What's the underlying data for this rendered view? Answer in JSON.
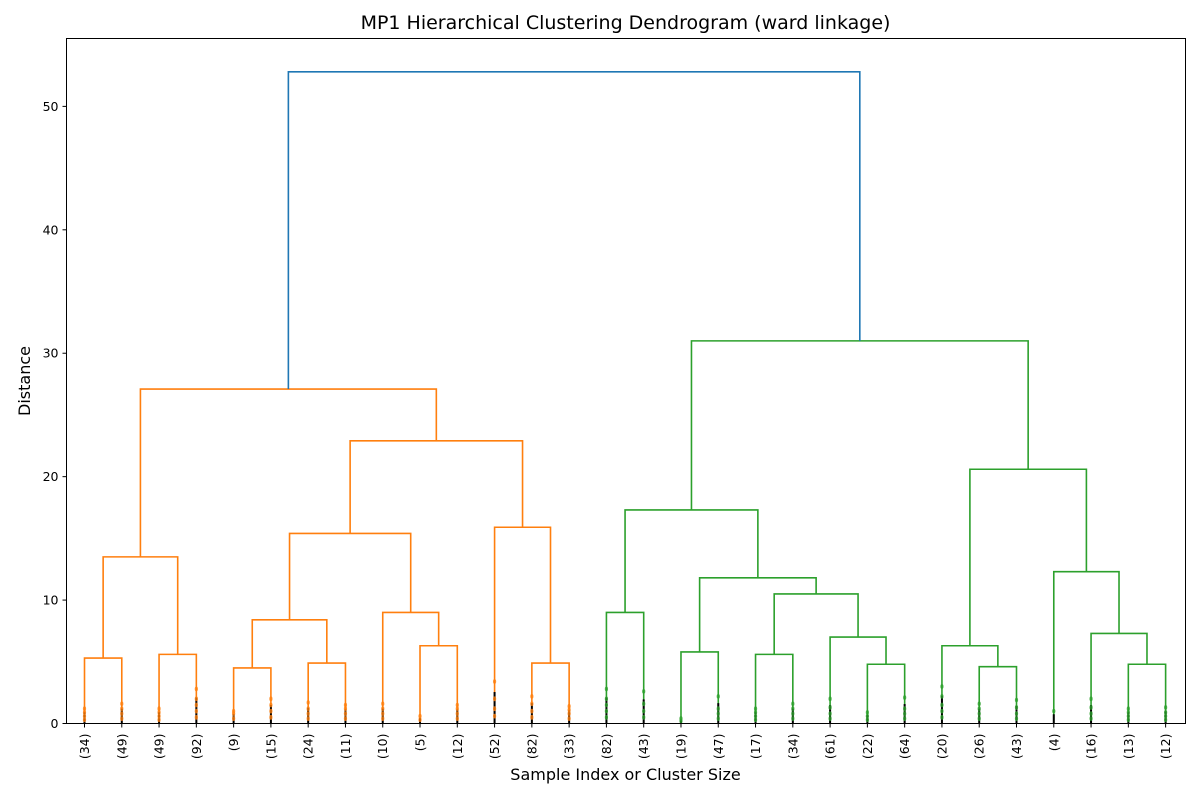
{
  "chart_data": {
    "type": "dendrogram",
    "title": "MP1 Hierarchical Clustering Dendrogram (ward linkage)",
    "xlabel": "Sample Index or Cluster Size",
    "ylabel": "Distance",
    "ylim": [
      0,
      55.5
    ],
    "yticks": [
      0,
      10,
      20,
      30,
      40,
      50
    ],
    "grid": false,
    "colors": {
      "root": "#1f77b4",
      "cluster_1": "#ff7f0e",
      "cluster_2": "#2ca02c",
      "leaf_mark": "#000000"
    },
    "leaves": [
      {
        "label": "(34)",
        "cluster": "cluster_1"
      },
      {
        "label": "(49)",
        "cluster": "cluster_1"
      },
      {
        "label": "(49)",
        "cluster": "cluster_1"
      },
      {
        "label": "(92)",
        "cluster": "cluster_1"
      },
      {
        "label": "(9)",
        "cluster": "cluster_1"
      },
      {
        "label": "(15)",
        "cluster": "cluster_1"
      },
      {
        "label": "(24)",
        "cluster": "cluster_1"
      },
      {
        "label": "(11)",
        "cluster": "cluster_1"
      },
      {
        "label": "(10)",
        "cluster": "cluster_1"
      },
      {
        "label": "(5)",
        "cluster": "cluster_1"
      },
      {
        "label": "(12)",
        "cluster": "cluster_1"
      },
      {
        "label": "(52)",
        "cluster": "cluster_1"
      },
      {
        "label": "(82)",
        "cluster": "cluster_1"
      },
      {
        "label": "(33)",
        "cluster": "cluster_1"
      },
      {
        "label": "(82)",
        "cluster": "cluster_2"
      },
      {
        "label": "(43)",
        "cluster": "cluster_2"
      },
      {
        "label": "(19)",
        "cluster": "cluster_2"
      },
      {
        "label": "(47)",
        "cluster": "cluster_2"
      },
      {
        "label": "(17)",
        "cluster": "cluster_2"
      },
      {
        "label": "(34)",
        "cluster": "cluster_2"
      },
      {
        "label": "(61)",
        "cluster": "cluster_2"
      },
      {
        "label": "(22)",
        "cluster": "cluster_2"
      },
      {
        "label": "(64)",
        "cluster": "cluster_2"
      },
      {
        "label": "(20)",
        "cluster": "cluster_2"
      },
      {
        "label": "(26)",
        "cluster": "cluster_2"
      },
      {
        "label": "(43)",
        "cluster": "cluster_2"
      },
      {
        "label": "(4)",
        "cluster": "cluster_2"
      },
      {
        "label": "(16)",
        "cluster": "cluster_2"
      },
      {
        "label": "(13)",
        "cluster": "cluster_2"
      },
      {
        "label": "(12)",
        "cluster": "cluster_2"
      }
    ],
    "merges": [
      {
        "children": [
          0,
          1
        ],
        "height": 5.3,
        "cluster": "cluster_1"
      },
      {
        "children": [
          2,
          3
        ],
        "height": 5.6,
        "cluster": "cluster_1"
      },
      {
        "children": [
          "m0",
          "m1"
        ],
        "height": 13.5,
        "cluster": "cluster_1"
      },
      {
        "children": [
          4,
          5
        ],
        "height": 4.5,
        "cluster": "cluster_1"
      },
      {
        "children": [
          6,
          7
        ],
        "height": 4.9,
        "cluster": "cluster_1"
      },
      {
        "children": [
          "m3",
          "m4"
        ],
        "height": 8.4,
        "cluster": "cluster_1"
      },
      {
        "children": [
          9,
          10
        ],
        "height": 6.3,
        "cluster": "cluster_1"
      },
      {
        "children": [
          8,
          "m6"
        ],
        "height": 9.0,
        "cluster": "cluster_1"
      },
      {
        "children": [
          "m5",
          "m7"
        ],
        "height": 15.4,
        "cluster": "cluster_1"
      },
      {
        "children": [
          12,
          13
        ],
        "height": 4.9,
        "cluster": "cluster_1"
      },
      {
        "children": [
          11,
          "m9"
        ],
        "height": 15.9,
        "cluster": "cluster_1"
      },
      {
        "children": [
          "m8",
          "m10"
        ],
        "height": 22.9,
        "cluster": "cluster_1"
      },
      {
        "children": [
          "m2",
          "m11"
        ],
        "height": 27.1,
        "cluster": "cluster_1"
      },
      {
        "children": [
          14,
          15
        ],
        "height": 9.0,
        "cluster": "cluster_2"
      },
      {
        "children": [
          16,
          17
        ],
        "height": 5.8,
        "cluster": "cluster_2"
      },
      {
        "children": [
          18,
          19
        ],
        "height": 5.6,
        "cluster": "cluster_2"
      },
      {
        "children": [
          21,
          22
        ],
        "height": 4.8,
        "cluster": "cluster_2"
      },
      {
        "children": [
          20,
          "m16"
        ],
        "height": 7.0,
        "cluster": "cluster_2"
      },
      {
        "children": [
          "m15",
          "m17"
        ],
        "height": 10.5,
        "cluster": "cluster_2"
      },
      {
        "children": [
          "m14",
          "m18"
        ],
        "height": 11.8,
        "cluster": "cluster_2"
      },
      {
        "children": [
          "m13",
          "m19"
        ],
        "height": 17.3,
        "cluster": "cluster_2"
      },
      {
        "children": [
          24,
          25
        ],
        "height": 4.6,
        "cluster": "cluster_2"
      },
      {
        "children": [
          23,
          "m21"
        ],
        "height": 6.3,
        "cluster": "cluster_2"
      },
      {
        "children": [
          28,
          29
        ],
        "height": 4.8,
        "cluster": "cluster_2"
      },
      {
        "children": [
          27,
          "m23"
        ],
        "height": 7.3,
        "cluster": "cluster_2"
      },
      {
        "children": [
          26,
          "m24"
        ],
        "height": 12.3,
        "cluster": "cluster_2"
      },
      {
        "children": [
          "m22",
          "m25"
        ],
        "height": 20.6,
        "cluster": "cluster_2"
      },
      {
        "children": [
          "m20",
          "m26"
        ],
        "height": 31.0,
        "cluster": "cluster_2"
      },
      {
        "children": [
          "m12",
          "m27"
        ],
        "height": 52.8,
        "cluster": "root"
      }
    ],
    "leaf_marks": [
      [
        0.3,
        0.6,
        0.9,
        1.2
      ],
      [
        0.4,
        0.8,
        1.2,
        1.6
      ],
      [
        0.3,
        0.6,
        0.9,
        1.2
      ],
      [
        0.5,
        1.0,
        1.5,
        2.0,
        2.8
      ],
      [
        0.4,
        0.8,
        1.0
      ],
      [
        0.5,
        1.0,
        1.5,
        2.0
      ],
      [
        0.4,
        0.8,
        1.2,
        1.7
      ],
      [
        0.4,
        0.8,
        1.2,
        1.5
      ],
      [
        0.4,
        0.8,
        1.2,
        1.6
      ],
      [
        0.3,
        0.6
      ],
      [
        0.4,
        0.8,
        1.2,
        1.5
      ],
      [
        0.6,
        1.2,
        2.0,
        3.4
      ],
      [
        0.5,
        1.0,
        1.6,
        2.2
      ],
      [
        0.4,
        0.8,
        1.1,
        1.4
      ],
      [
        0.5,
        1.0,
        1.5,
        2.0,
        2.8
      ],
      [
        0.5,
        1.0,
        1.6,
        2.6
      ],
      [
        0.2,
        0.4
      ],
      [
        0.4,
        0.8,
        1.2,
        2.2
      ],
      [
        0.3,
        0.6,
        0.9,
        1.2
      ],
      [
        0.4,
        0.8,
        1.2,
        1.6
      ],
      [
        0.4,
        0.8,
        1.3,
        2.0
      ],
      [
        0.3,
        0.6,
        0.9
      ],
      [
        0.4,
        0.8,
        1.2,
        2.1
      ],
      [
        0.5,
        1.0,
        1.5,
        2.2,
        3.0
      ],
      [
        0.4,
        0.8,
        1.2,
        1.6
      ],
      [
        0.4,
        0.8,
        1.3,
        1.9
      ],
      [
        1.0
      ],
      [
        0.4,
        0.8,
        1.3,
        2.0
      ],
      [
        0.3,
        0.6,
        0.9,
        1.2
      ],
      [
        0.3,
        0.6,
        0.9,
        1.3
      ]
    ]
  }
}
